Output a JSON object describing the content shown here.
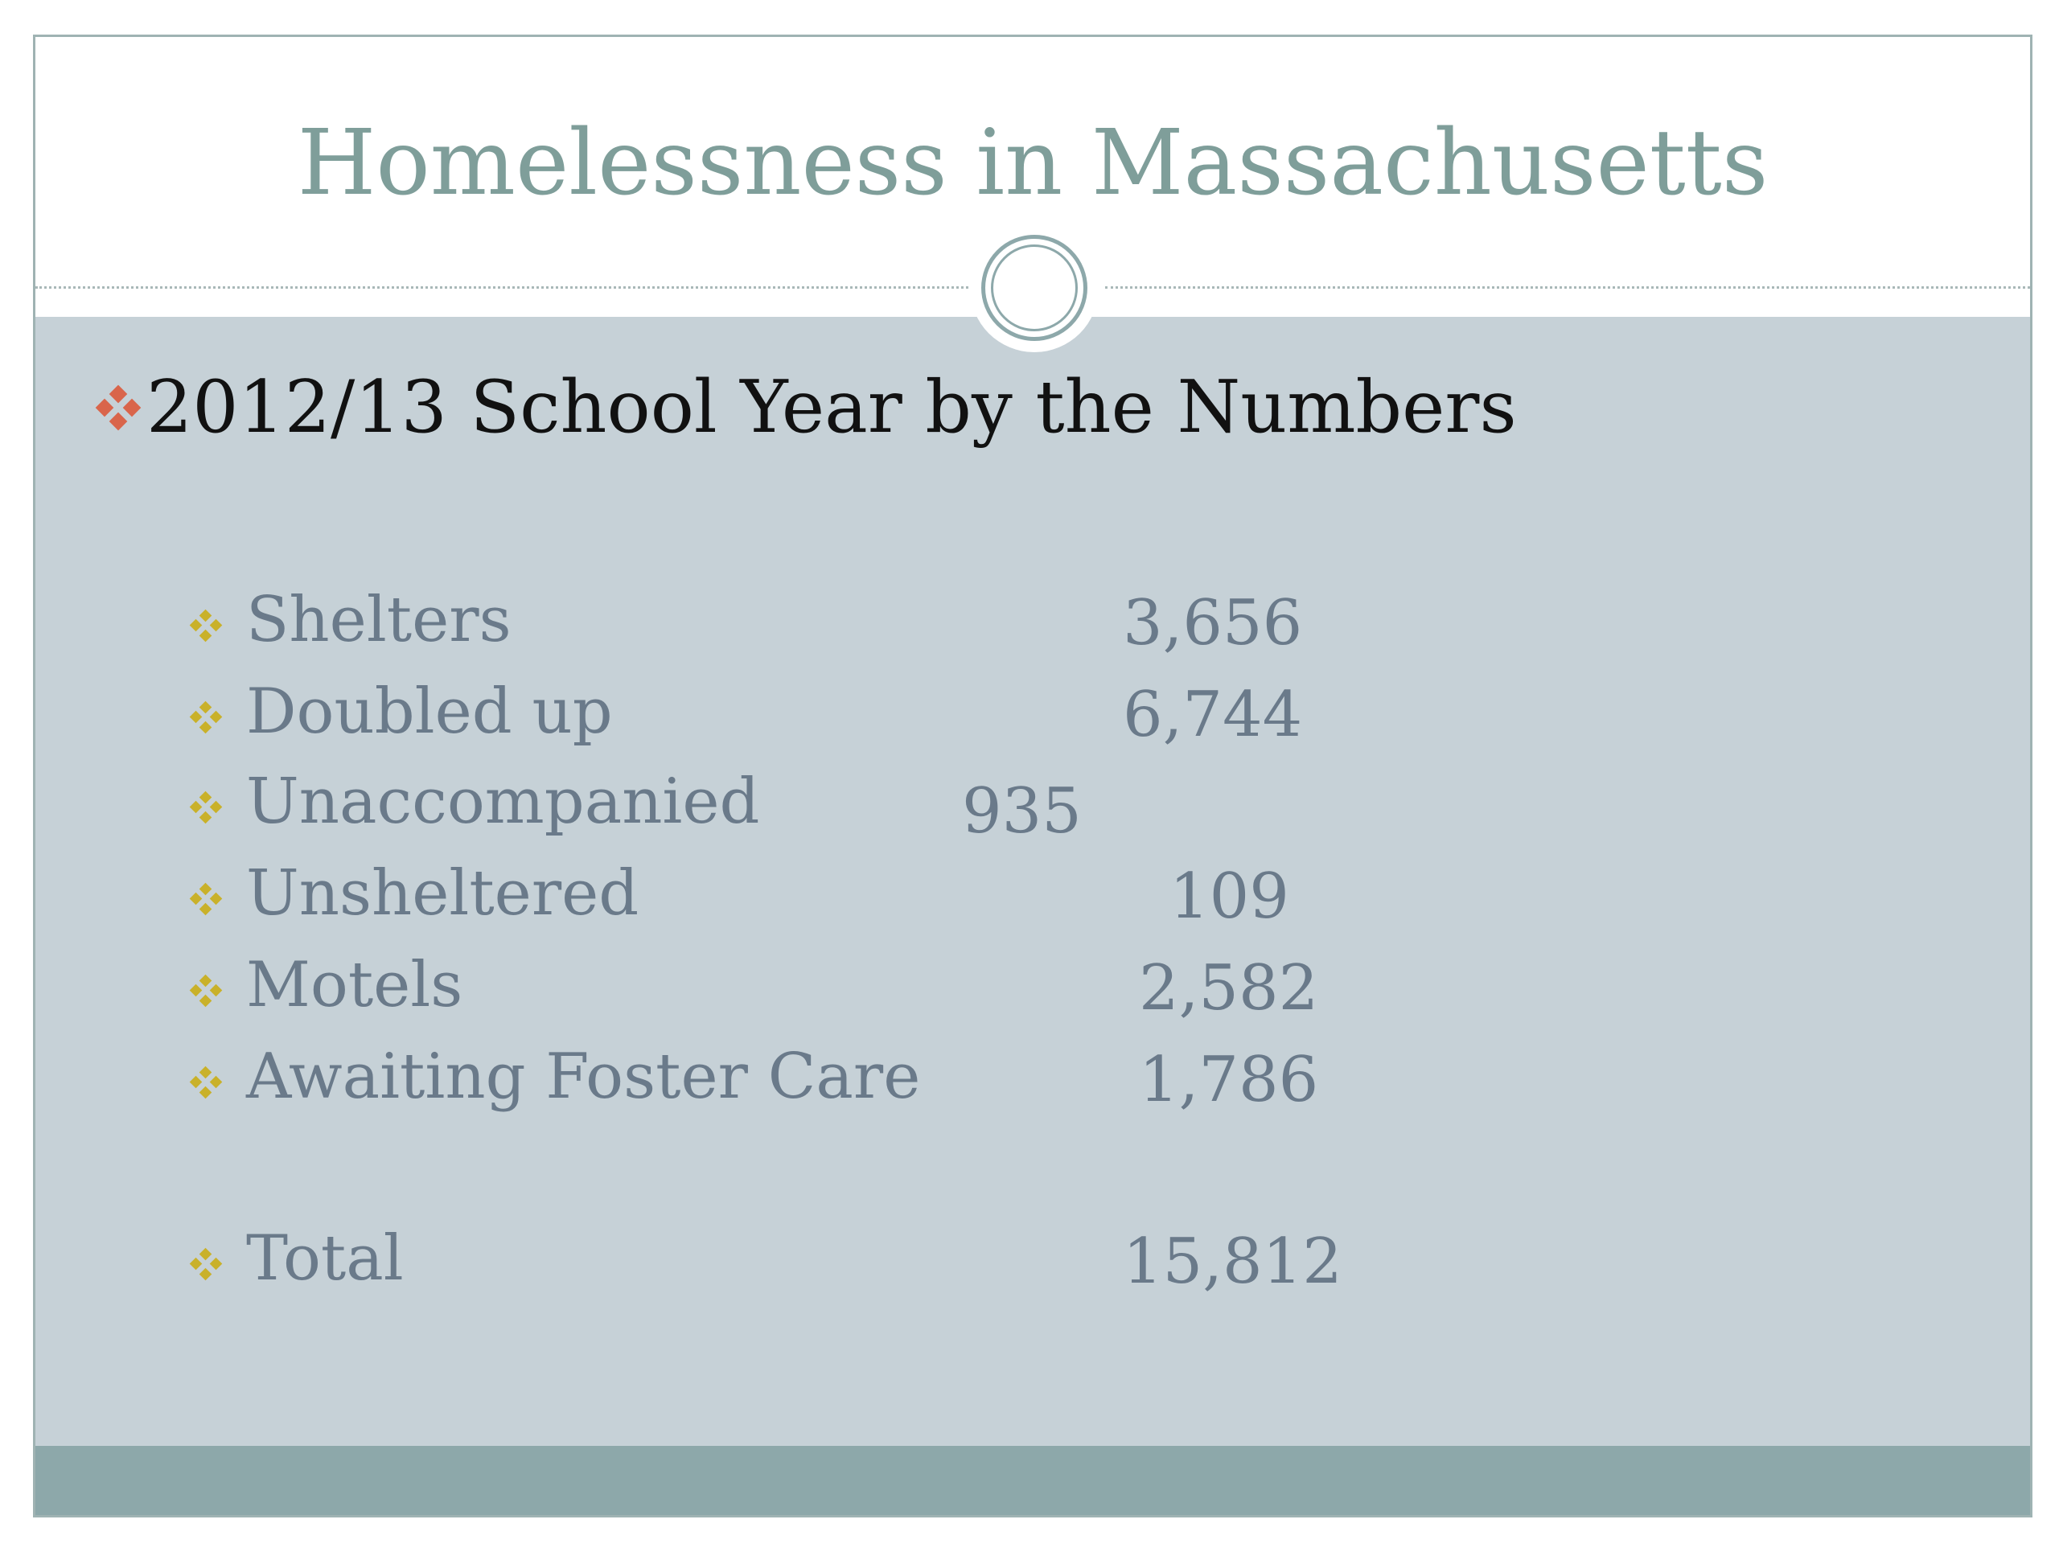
{
  "slide": {
    "title": "Homelessness in Massachusetts",
    "heading": "2012/13 School Year by the Numbers",
    "rows": [
      {
        "label": "Shelters",
        "value": "3,656"
      },
      {
        "label": "Doubled up",
        "value": "6,744"
      },
      {
        "label": "Unaccompanied",
        "value": "935"
      },
      {
        "label": "Unsheltered",
        "value": "109"
      },
      {
        "label": "Motels",
        "value": "2,582"
      },
      {
        "label": "Awaiting Foster Care",
        "value": "1,786"
      }
    ],
    "total": {
      "label": "Total",
      "value": "15,812"
    }
  },
  "colors": {
    "title": "#7f9e9a",
    "body_background": "#c6d1d7",
    "footer_bar": "#8da8aa",
    "heading_bullet": "#d9654b",
    "item_bullet": "#c9b12a",
    "item_text": "#6a7a8a"
  },
  "icons": {
    "heading_bullet": "four-diamond-bullet-icon",
    "item_bullet": "four-diamond-bullet-icon",
    "ornament": "double-ring-circle-icon"
  }
}
